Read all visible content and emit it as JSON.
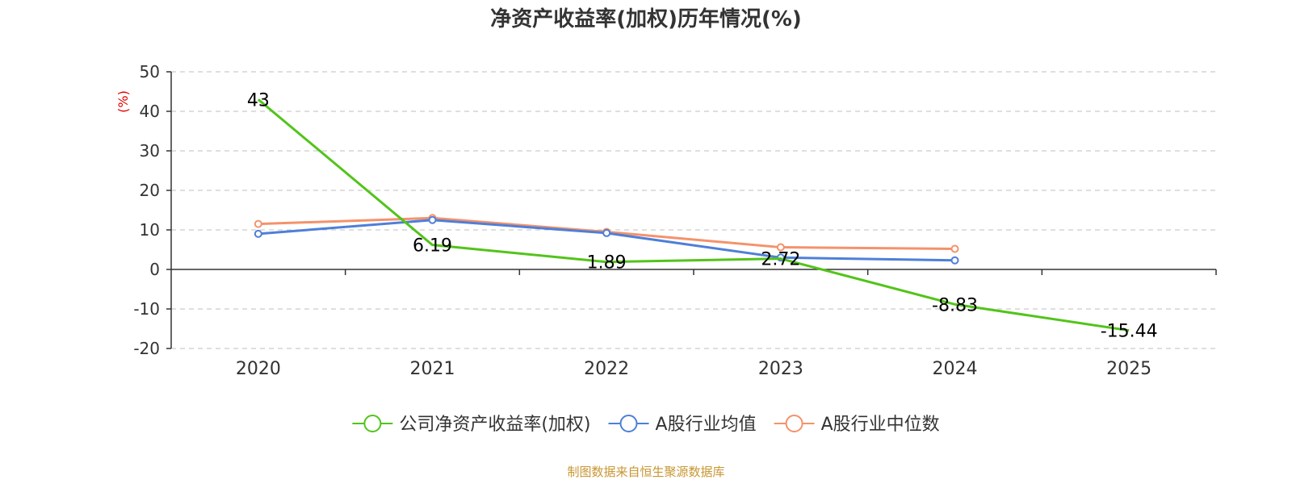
{
  "chart_data": {
    "type": "line",
    "title": "净资产收益率(加权)历年情况(%)",
    "ylabel": "(%)",
    "ylim": [
      -20,
      50
    ],
    "yticks": [
      50,
      40,
      30,
      20,
      10,
      0,
      -10,
      -20
    ],
    "categories": [
      "2020",
      "2021",
      "2022",
      "2023",
      "2024",
      "2025"
    ],
    "grid": true,
    "legend_position": "bottom",
    "series": [
      {
        "name": "公司净资产收益率(加权)",
        "color": "#52c41a",
        "values": [
          43,
          6.19,
          1.89,
          2.72,
          -8.83,
          -15.44
        ],
        "labels": [
          "43",
          "6.19",
          "1.89",
          "2.72",
          "-8.83",
          "-15.44"
        ],
        "show_markers": false
      },
      {
        "name": "A股行业均值",
        "color": "#4e7fd9",
        "values": [
          9,
          12.5,
          9.2,
          3,
          2.3,
          null
        ],
        "show_markers": true
      },
      {
        "name": "A股行业中位数",
        "color": "#f4926b",
        "values": [
          11.5,
          13,
          9.5,
          5.6,
          5.2,
          null
        ],
        "show_markers": true
      }
    ]
  },
  "source": "制图数据来自恒生聚源数据库"
}
